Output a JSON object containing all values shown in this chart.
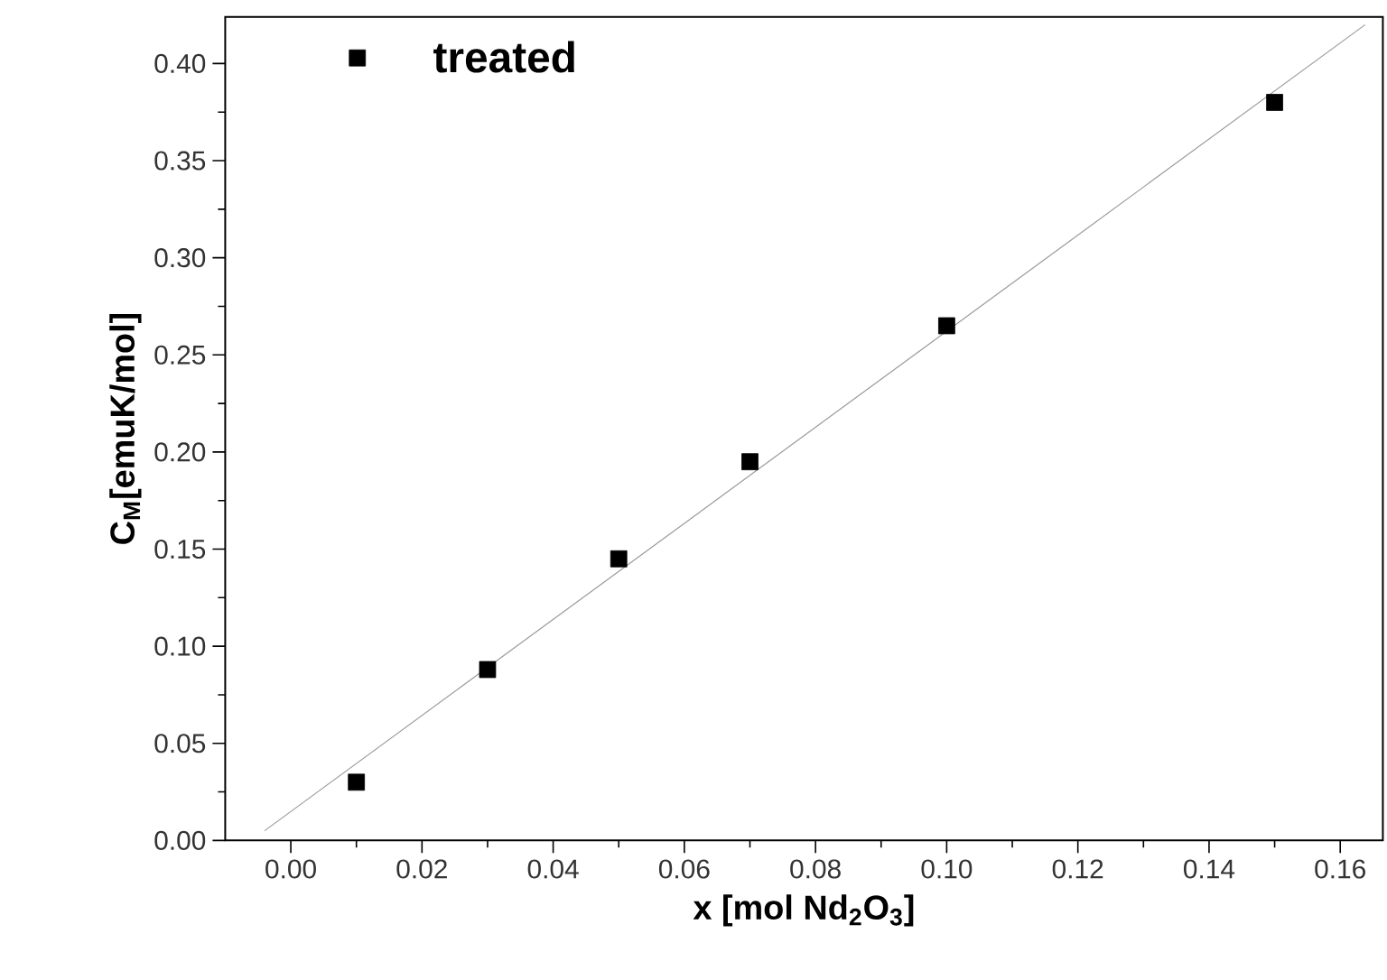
{
  "chart_data": {
    "type": "scatter",
    "xlabel": "x [mol Nd$_{2}$O$_{3}$]",
    "ylabel": "C$_{M}$[emuK/mol]",
    "xlim": [
      -0.01,
      0.1665
    ],
    "ylim": [
      0,
      0.424
    ],
    "xticks": [
      {
        "value": 0,
        "label": "0.00"
      },
      {
        "value": 0.02,
        "label": "0.02"
      },
      {
        "value": 0.04,
        "label": "0.04"
      },
      {
        "value": 0.06,
        "label": "0.06"
      },
      {
        "value": 0.08,
        "label": "0.08"
      },
      {
        "value": 0.1,
        "label": "0.10"
      },
      {
        "value": 0.12,
        "label": "0.12"
      },
      {
        "value": 0.14,
        "label": "0.14"
      },
      {
        "value": 0.16,
        "label": "0.16"
      }
    ],
    "yticks": [
      {
        "value": 0,
        "label": "0.00"
      },
      {
        "value": 0.05,
        "label": "0.05"
      },
      {
        "value": 0.1,
        "label": "0.10"
      },
      {
        "value": 0.15,
        "label": "0.15"
      },
      {
        "value": 0.2,
        "label": "0.20"
      },
      {
        "value": 0.25,
        "label": "0.25"
      },
      {
        "value": 0.3,
        "label": "0.30"
      },
      {
        "value": 0.35,
        "label": "0.35"
      },
      {
        "value": 0.4,
        "label": "0.40"
      }
    ],
    "legend": "top left",
    "grid": false,
    "series": [
      {
        "name": "treated",
        "color": "#000000",
        "marker": "square",
        "x": [
          0.01,
          0.03,
          0.05,
          0.07,
          0.1,
          0.15
        ],
        "values": [
          0.03,
          0.088,
          0.145,
          0.195,
          0.265,
          0.38
        ]
      },
      {
        "type": "line",
        "color": "#999999",
        "marker": "none",
        "x": [
          -0.004,
          0.1638
        ],
        "values": [
          0.005,
          0.42
        ]
      }
    ]
  }
}
